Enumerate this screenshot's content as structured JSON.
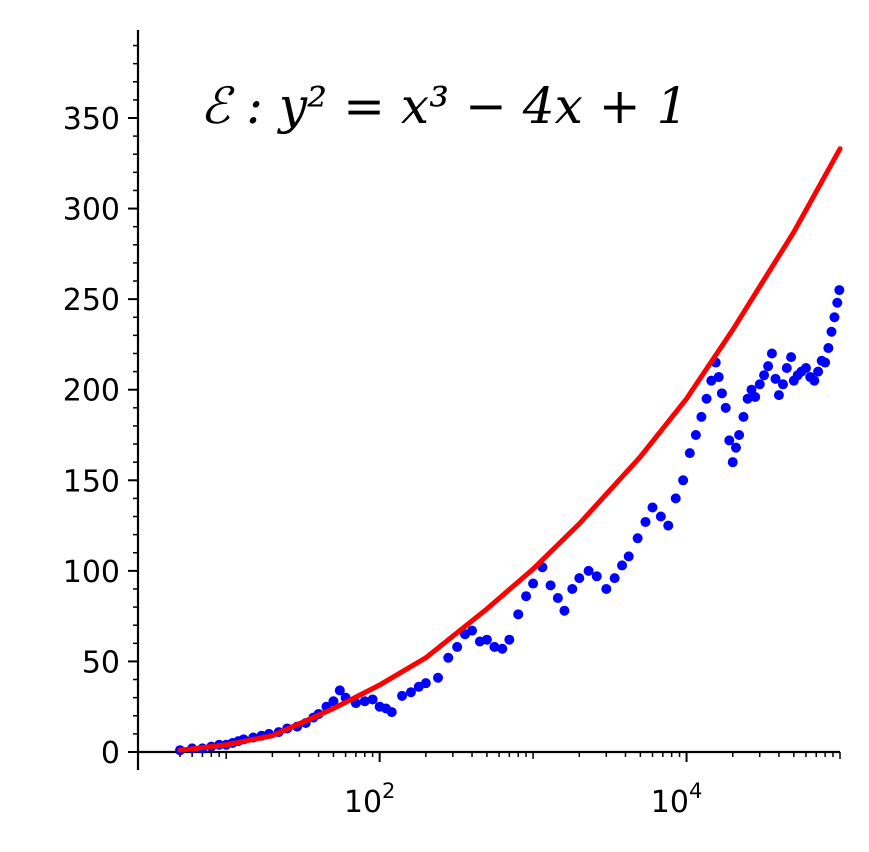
{
  "chart_data": {
    "type": "scatter",
    "title": "",
    "xlabel": "",
    "ylabel": "",
    "x_scale": "log",
    "xlim": [
      5,
      100000
    ],
    "ylim": [
      0,
      395
    ],
    "grid": false,
    "annotation": "ℰ : y² = x³ − 4x + 1",
    "y_ticks": [
      0,
      50,
      100,
      150,
      200,
      250,
      300,
      350
    ],
    "x_ticks": [
      {
        "value": 100,
        "label": "10",
        "exp": "2"
      },
      {
        "value": 10000,
        "label": "10",
        "exp": "4"
      }
    ],
    "series": [
      {
        "kind": "scatter",
        "color": "#0000ff",
        "points": [
          [
            5,
            1
          ],
          [
            6,
            2
          ],
          [
            7,
            2
          ],
          [
            8,
            3
          ],
          [
            9,
            4
          ],
          [
            10,
            4
          ],
          [
            11,
            5
          ],
          [
            12,
            6
          ],
          [
            13,
            7
          ],
          [
            15,
            8
          ],
          [
            17,
            9
          ],
          [
            19,
            10
          ],
          [
            22,
            11
          ],
          [
            25,
            13
          ],
          [
            29,
            14
          ],
          [
            33,
            16
          ],
          [
            37,
            19
          ],
          [
            40,
            21
          ],
          [
            45,
            25
          ],
          [
            50,
            28
          ],
          [
            55,
            34
          ],
          [
            60,
            30
          ],
          [
            70,
            27
          ],
          [
            80,
            28
          ],
          [
            90,
            29
          ],
          [
            100,
            25
          ],
          [
            110,
            24
          ],
          [
            120,
            22
          ],
          [
            140,
            31
          ],
          [
            160,
            33
          ],
          [
            180,
            36
          ],
          [
            200,
            38
          ],
          [
            240,
            41
          ],
          [
            280,
            52
          ],
          [
            320,
            58
          ],
          [
            360,
            65
          ],
          [
            400,
            67
          ],
          [
            450,
            61
          ],
          [
            500,
            62
          ],
          [
            560,
            58
          ],
          [
            630,
            57
          ],
          [
            700,
            62
          ],
          [
            800,
            76
          ],
          [
            900,
            86
          ],
          [
            1000,
            93
          ],
          [
            1150,
            102
          ],
          [
            1300,
            92
          ],
          [
            1450,
            85
          ],
          [
            1600,
            78
          ],
          [
            1800,
            90
          ],
          [
            2000,
            96
          ],
          [
            2300,
            100
          ],
          [
            2600,
            97
          ],
          [
            3000,
            90
          ],
          [
            3400,
            96
          ],
          [
            3800,
            103
          ],
          [
            4200,
            108
          ],
          [
            4800,
            118
          ],
          [
            5400,
            127
          ],
          [
            6000,
            135
          ],
          [
            6800,
            130
          ],
          [
            7600,
            125
          ],
          [
            8500,
            140
          ],
          [
            9500,
            150
          ],
          [
            10500,
            165
          ],
          [
            11500,
            175
          ],
          [
            12500,
            185
          ],
          [
            13500,
            195
          ],
          [
            14500,
            205
          ],
          [
            15500,
            215
          ],
          [
            16200,
            207
          ],
          [
            17000,
            198
          ],
          [
            18000,
            190
          ],
          [
            19000,
            172
          ],
          [
            20000,
            160
          ],
          [
            21000,
            168
          ],
          [
            22000,
            175
          ],
          [
            23500,
            185
          ],
          [
            25000,
            195
          ],
          [
            26500,
            200
          ],
          [
            28000,
            196
          ],
          [
            30000,
            203
          ],
          [
            32000,
            208
          ],
          [
            34000,
            213
          ],
          [
            36000,
            220
          ],
          [
            38000,
            206
          ],
          [
            40000,
            197
          ],
          [
            42500,
            203
          ],
          [
            45000,
            212
          ],
          [
            48000,
            218
          ],
          [
            50000,
            205
          ],
          [
            53000,
            208
          ],
          [
            56000,
            210
          ],
          [
            60000,
            212
          ],
          [
            64000,
            207
          ],
          [
            68000,
            205
          ],
          [
            72000,
            210
          ],
          [
            76000,
            216
          ],
          [
            80000,
            215
          ],
          [
            84000,
            223
          ],
          [
            88000,
            232
          ],
          [
            92000,
            240
          ],
          [
            96000,
            248
          ],
          [
            99000,
            255
          ]
        ]
      },
      {
        "kind": "line",
        "color": "#ff0000",
        "points": [
          [
            5,
            1
          ],
          [
            10,
            4
          ],
          [
            20,
            9
          ],
          [
            50,
            24
          ],
          [
            100,
            37
          ],
          [
            200,
            52
          ],
          [
            500,
            79
          ],
          [
            1000,
            101
          ],
          [
            2000,
            126
          ],
          [
            5000,
            163
          ],
          [
            10000,
            195
          ],
          [
            20000,
            233
          ],
          [
            50000,
            287
          ],
          [
            100000,
            333
          ]
        ]
      }
    ]
  }
}
